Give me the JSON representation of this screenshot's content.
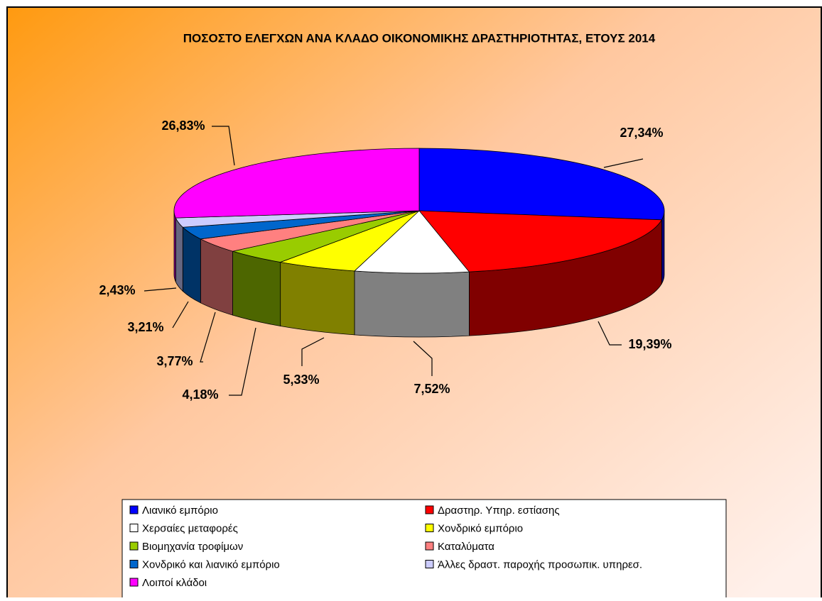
{
  "chart_data": {
    "type": "pie",
    "title": "ΠΟΣΟΣΤΟ ΕΛΕΓΧΩΝ ΑΝΑ ΚΛΑΔΟ ΟΙΚΟΝΟΜΙΚΗΣ ΔΡΑΣΤΗΡΙΟΤΗΤΑΣ, ΕΤΟΥΣ 2014",
    "categories": [
      "Λιανικό εμπόριο",
      "Δραστηρ. Υπηρ. εστίασης",
      "Χερσαίες μεταφορές",
      "Χονδρικό εμπόριο",
      "Βιομηχανία τροφίμων",
      "Καταλύματα",
      "Χονδρικό και λιανικό εμπόριο",
      "Άλλες δραστ. παροχής προσωπικ. υπηρεσ.",
      "Λοιποί κλάδοι"
    ],
    "values": [
      27.34,
      19.39,
      7.52,
      5.33,
      4.18,
      3.77,
      3.21,
      2.43,
      26.83
    ],
    "value_labels": [
      "27,34%",
      "19,39%",
      "7,52%",
      "5,33%",
      "4,18%",
      "3,77%",
      "3,21%",
      "2,43%",
      "26,83%"
    ],
    "colors": [
      "#0000ff",
      "#ff0000",
      "#ffffff",
      "#ffff00",
      "#99cc00",
      "#ff8080",
      "#0066cc",
      "#ccccff",
      "#ff00ff"
    ],
    "legend": "bottom"
  }
}
